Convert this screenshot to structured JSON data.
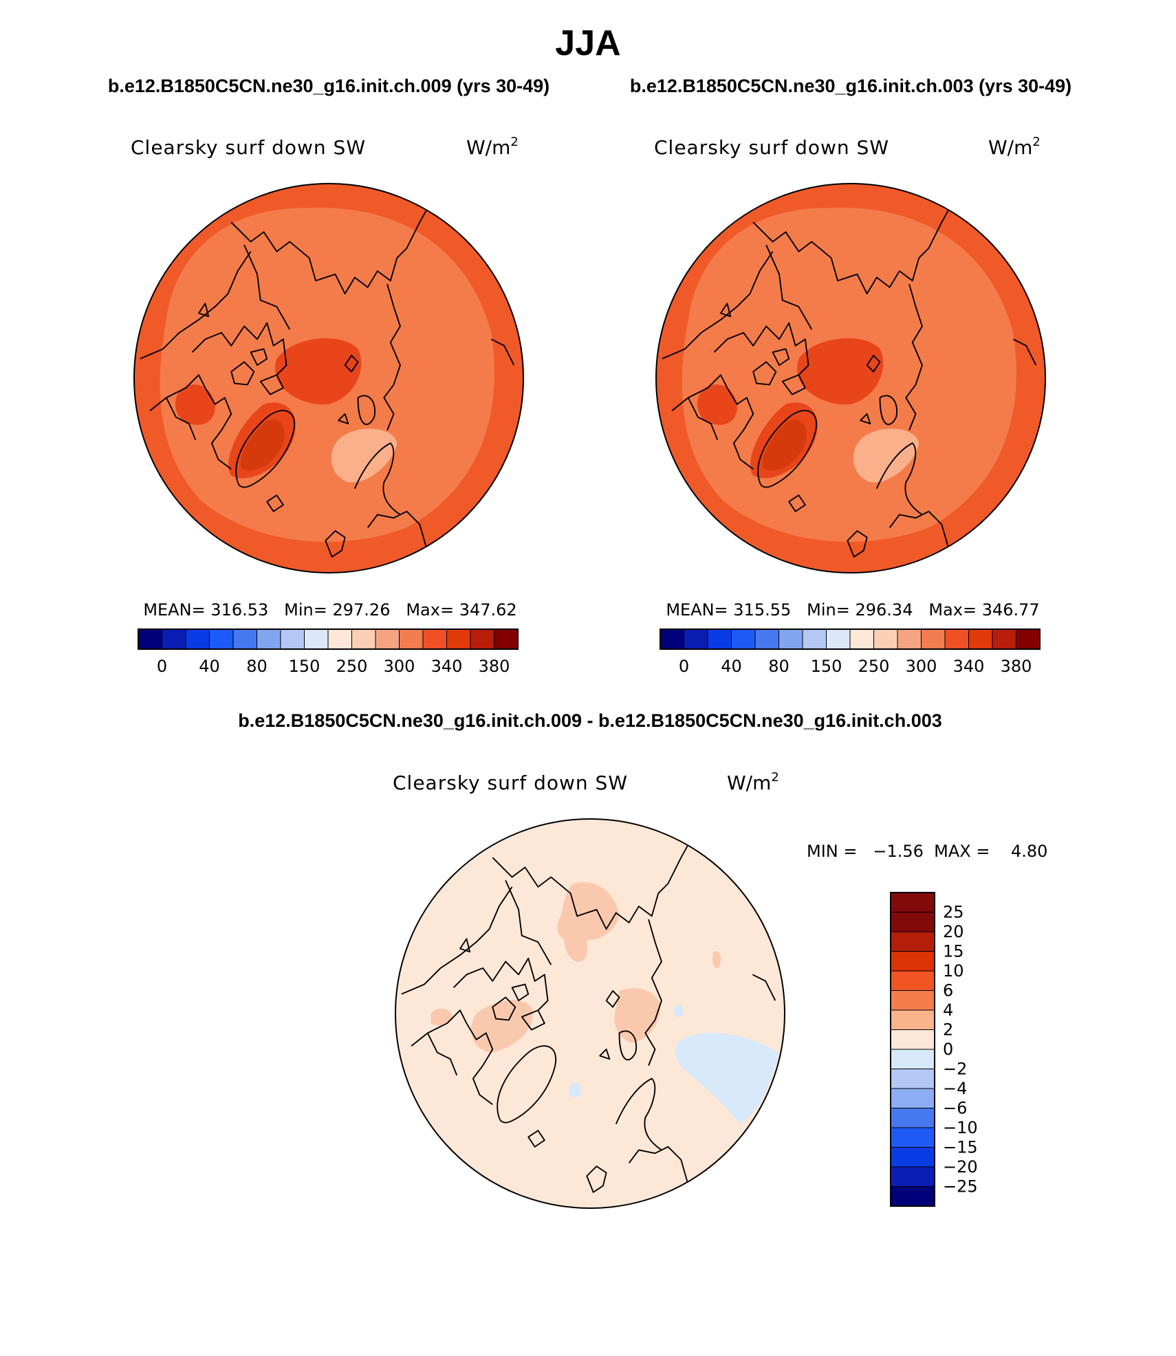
{
  "figure": {
    "season": "JJA",
    "run_a": "b.e12.B1850C5CN.ne30_g16.init.ch.009 (yrs 30-49)",
    "run_b": "b.e12.B1850C5CN.ne30_g16.init.ch.003 (yrs 30-49)",
    "diff_title": "b.e12.B1850C5CN.ne30_g16.init.ch.009 - b.e12.B1850C5CN.ne30_g16.init.ch.003"
  },
  "panels": [
    {
      "variable": "Clearsky surf down SW",
      "units": "W/m",
      "units_sup": "2",
      "stats": "MEAN= 316.53   Min= 297.26   Max= 347.62"
    },
    {
      "variable": "Clearsky surf down SW",
      "units": "W/m",
      "units_sup": "2",
      "stats": "MEAN= 315.55   Min= 296.34   Max= 346.77"
    }
  ],
  "diff_panel": {
    "variable": "Clearsky surf down SW",
    "units": "W/m",
    "units_sup": "2",
    "minmax": "MIN =   −1.56  MAX =    4.80"
  },
  "colors": {
    "abs_scale": [
      "#00007a",
      "#0a1eb4",
      "#0a3ce6",
      "#1e5af5",
      "#4678f0",
      "#82a5f0",
      "#b4c8f5",
      "#dce8fa",
      "#fde8d8",
      "#fbcfb6",
      "#f5a482",
      "#f27d50",
      "#f05023",
      "#e13a0a",
      "#b91e0a",
      "#820000"
    ],
    "diff_scale": [
      "#820a0a",
      "#b41e0a",
      "#dc3205",
      "#f05523",
      "#f57d4b",
      "#fab48c",
      "#fde8d8",
      "#d7e9fa",
      "#b4c8f5",
      "#8cacf5",
      "#4678f0",
      "#1e5af5",
      "#0a3ce6",
      "#0a1eb4",
      "#00007a"
    ],
    "map_outer": "#f05a28",
    "map_mid": "#f47c4a",
    "map_high": "#e8461a",
    "map_highest": "#d53a0c",
    "map_low": "#fab08a",
    "diff_base": "#fde8d8",
    "diff_pos": "#fac8ad",
    "diff_neg": "#d7e9fa",
    "coast": "#000000"
  },
  "colorbars": {
    "abs_labels": [
      "0",
      "40",
      "80",
      "150",
      "250",
      "300",
      "340",
      "380"
    ],
    "diff_labels": [
      "25",
      "20",
      "15",
      "10",
      "6",
      "4",
      "2",
      "0",
      "−2",
      "−4",
      "−6",
      "−10",
      "−15",
      "−20",
      "−25"
    ]
  },
  "icons": {
    "maps": "polar-stereographic-arctic-map",
    "colorbar": "colorbar-legend"
  }
}
